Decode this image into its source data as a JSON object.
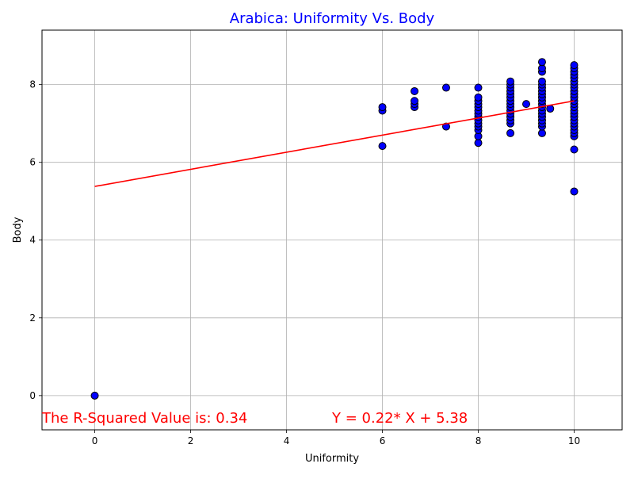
{
  "chart_data": {
    "type": "scatter",
    "title": "Arabica: Uniformity Vs. Body",
    "xlabel": "Uniformity",
    "ylabel": "Body",
    "xlim": [
      -1.1,
      11.0
    ],
    "ylim": [
      -0.88,
      9.4
    ],
    "xticks": [
      0,
      2,
      4,
      6,
      8,
      10
    ],
    "yticks": [
      0,
      2,
      4,
      6,
      8
    ],
    "grid": true,
    "colors": {
      "title": "#0000ff",
      "points": "#0000ff",
      "point_edge": "#000000",
      "fit_line": "#ff0000",
      "annotation": "#ff0000"
    },
    "points": [
      [
        0,
        0
      ],
      [
        6,
        6.42
      ],
      [
        6,
        7.33
      ],
      [
        6,
        7.42
      ],
      [
        6.67,
        7.42
      ],
      [
        6.67,
        7.5
      ],
      [
        6.67,
        7.58
      ],
      [
        6.67,
        7.83
      ],
      [
        7.33,
        6.92
      ],
      [
        7.33,
        7.92
      ],
      [
        8,
        6.5
      ],
      [
        8,
        6.67
      ],
      [
        8,
        6.83
      ],
      [
        8,
        6.92
      ],
      [
        8,
        7.0
      ],
      [
        8,
        7.08
      ],
      [
        8,
        7.17
      ],
      [
        8,
        7.25
      ],
      [
        8,
        7.33
      ],
      [
        8,
        7.42
      ],
      [
        8,
        7.5
      ],
      [
        8,
        7.58
      ],
      [
        8,
        7.67
      ],
      [
        8,
        7.92
      ],
      [
        8.67,
        6.75
      ],
      [
        8.67,
        7.0
      ],
      [
        8.67,
        7.08
      ],
      [
        8.67,
        7.17
      ],
      [
        8.67,
        7.25
      ],
      [
        8.67,
        7.33
      ],
      [
        8.67,
        7.42
      ],
      [
        8.67,
        7.5
      ],
      [
        8.67,
        7.58
      ],
      [
        8.67,
        7.67
      ],
      [
        8.67,
        7.75
      ],
      [
        8.67,
        7.83
      ],
      [
        8.67,
        7.92
      ],
      [
        8.67,
        8.0
      ],
      [
        8.67,
        8.08
      ],
      [
        9,
        7.5
      ],
      [
        9.33,
        6.75
      ],
      [
        9.33,
        6.92
      ],
      [
        9.33,
        7.0
      ],
      [
        9.33,
        7.08
      ],
      [
        9.33,
        7.17
      ],
      [
        9.33,
        7.25
      ],
      [
        9.33,
        7.33
      ],
      [
        9.33,
        7.42
      ],
      [
        9.33,
        7.5
      ],
      [
        9.33,
        7.58
      ],
      [
        9.33,
        7.67
      ],
      [
        9.33,
        7.75
      ],
      [
        9.33,
        7.83
      ],
      [
        9.33,
        7.92
      ],
      [
        9.33,
        8.0
      ],
      [
        9.33,
        8.08
      ],
      [
        9.33,
        8.33
      ],
      [
        9.33,
        8.42
      ],
      [
        9.33,
        8.58
      ],
      [
        9.5,
        7.38
      ],
      [
        10,
        5.25
      ],
      [
        10,
        6.33
      ],
      [
        10,
        6.67
      ],
      [
        10,
        6.75
      ],
      [
        10,
        6.83
      ],
      [
        10,
        6.92
      ],
      [
        10,
        7.0
      ],
      [
        10,
        7.08
      ],
      [
        10,
        7.17
      ],
      [
        10,
        7.25
      ],
      [
        10,
        7.33
      ],
      [
        10,
        7.42
      ],
      [
        10,
        7.5
      ],
      [
        10,
        7.58
      ],
      [
        10,
        7.67
      ],
      [
        10,
        7.75
      ],
      [
        10,
        7.83
      ],
      [
        10,
        7.92
      ],
      [
        10,
        8.0
      ],
      [
        10,
        8.08
      ],
      [
        10,
        8.17
      ],
      [
        10,
        8.25
      ],
      [
        10,
        8.33
      ],
      [
        10,
        8.42
      ],
      [
        10,
        8.5
      ]
    ],
    "fit": {
      "slope": 0.22,
      "intercept": 5.38,
      "x_range": [
        0,
        10
      ]
    },
    "annotations": {
      "r_squared": "The R-Squared Value is: 0.34",
      "equation": "Y = 0.22* X + 5.38"
    }
  }
}
